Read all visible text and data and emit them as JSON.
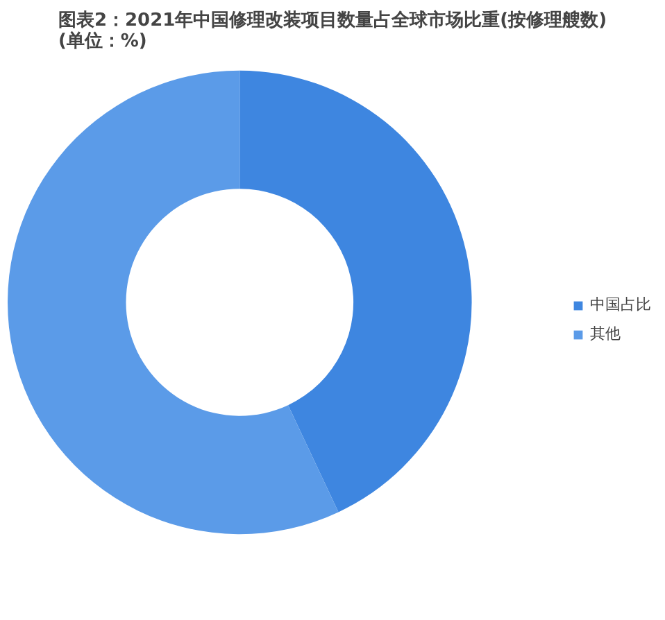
{
  "chart_data": {
    "type": "donut",
    "title": "图表2：2021年中国修理改装项目数量占全球市场比重(按修理艘数)(单位：%)",
    "categories": [
      "中国占比",
      "其他"
    ],
    "values": [
      43,
      57
    ],
    "colors": [
      "#3e86e0",
      "#5b9be8"
    ],
    "legend": "right"
  }
}
